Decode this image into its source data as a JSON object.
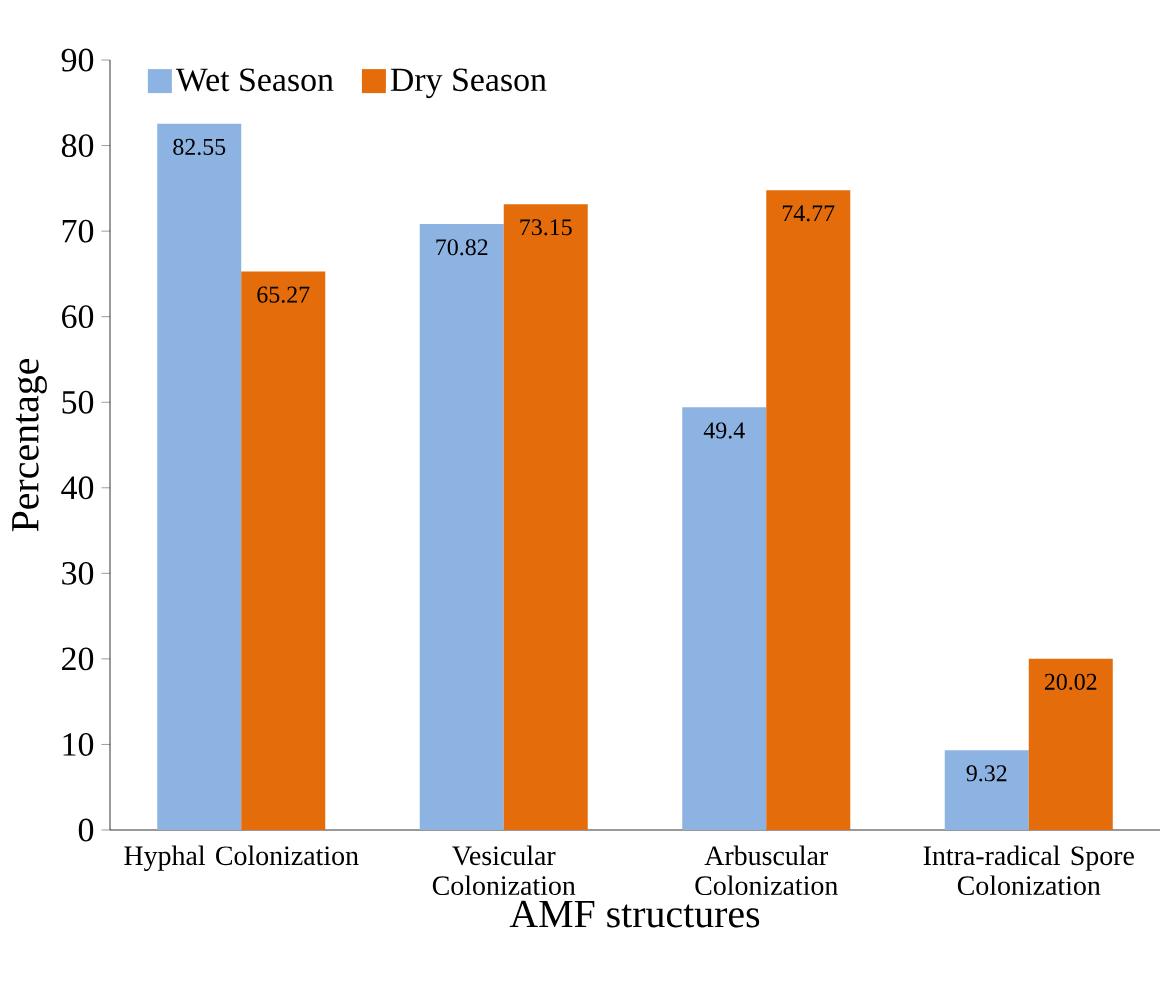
{
  "chart_data": {
    "type": "bar",
    "xlabel": "AMF structures",
    "ylabel": "Percentage",
    "categories": [
      "Hyphal Colonization",
      "Vesicular Colonization",
      "Arbuscular Colonization",
      "Intra-radical Spore Colonization"
    ],
    "series": [
      {
        "name": "Wet Season",
        "color": "#8db3e2",
        "values": [
          82.55,
          70.82,
          49.4,
          9.32
        ]
      },
      {
        "name": "Dry Season",
        "color": "#e46c0a",
        "values": [
          65.27,
          73.15,
          74.77,
          20.02
        ]
      }
    ],
    "ylim": [
      0,
      90
    ],
    "yticks": [
      0,
      10,
      20,
      30,
      40,
      50,
      60,
      70,
      80,
      90
    ],
    "data_labels": true,
    "grid": false,
    "legend": "top left"
  }
}
